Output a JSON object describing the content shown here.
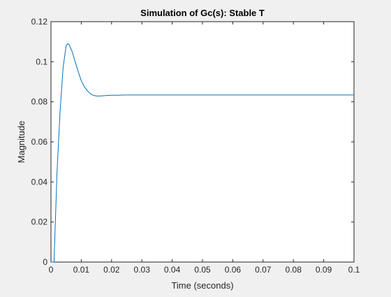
{
  "chart_data": {
    "type": "line",
    "title": "Simulation of Gc(s): Stable T",
    "xlabel": "Time (seconds)",
    "ylabel": "Magnitude",
    "xlim": [
      0,
      0.1
    ],
    "ylim": [
      0,
      0.12
    ],
    "xticks": [
      0,
      0.01,
      0.02,
      0.03,
      0.04,
      0.05,
      0.06,
      0.07,
      0.08,
      0.09,
      0.1
    ],
    "xtick_labels": [
      "0",
      "0.01",
      "0.02",
      "0.03",
      "0.04",
      "0.05",
      "0.06",
      "0.07",
      "0.08",
      "0.09",
      "0.1"
    ],
    "yticks": [
      0,
      0.02,
      0.04,
      0.06,
      0.08,
      0.1,
      0.12
    ],
    "ytick_labels": [
      "0",
      "0.02",
      "0.04",
      "0.06",
      "0.08",
      "0.1",
      "0.12"
    ],
    "grid": false,
    "series": [
      {
        "color": "#0072bd",
        "x": [
          0,
          0.001,
          0.002,
          0.003,
          0.004,
          0.005,
          0.0055,
          0.006,
          0.007,
          0.008,
          0.009,
          0.01,
          0.011,
          0.012,
          0.013,
          0.014,
          0.015,
          0.016,
          0.017,
          0.018,
          0.02,
          0.022,
          0.025,
          0.03,
          0.04,
          0.05,
          0.06,
          0.07,
          0.08,
          0.09,
          0.1
        ],
        "y": [
          0,
          0.0,
          0.045,
          0.075,
          0.097,
          0.108,
          0.109,
          0.1085,
          0.105,
          0.1,
          0.095,
          0.0905,
          0.0875,
          0.0855,
          0.084,
          0.0832,
          0.0829,
          0.0829,
          0.083,
          0.0831,
          0.0833,
          0.0833,
          0.0834,
          0.0834,
          0.0834,
          0.0834,
          0.0834,
          0.0834,
          0.0834,
          0.0834,
          0.0834
        ]
      }
    ]
  }
}
